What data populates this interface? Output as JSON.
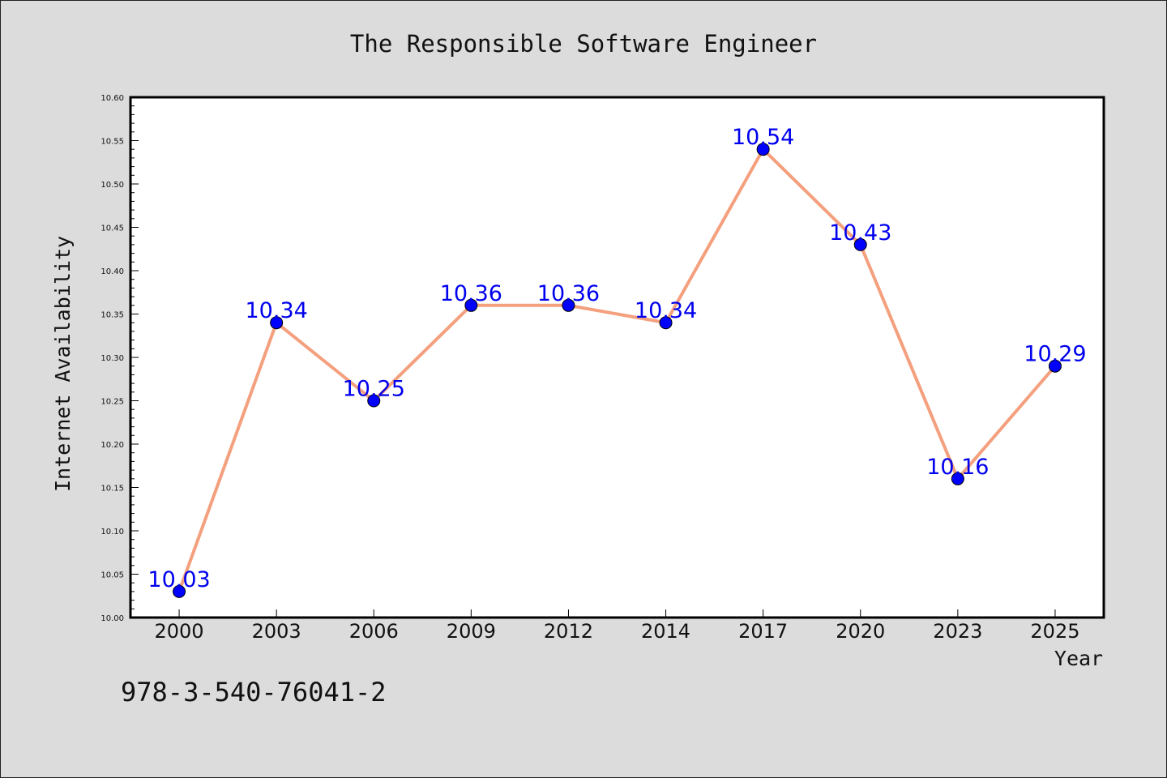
{
  "chart_data": {
    "type": "line",
    "title": "The Responsible Software Engineer",
    "xlabel": "Year",
    "ylabel": "Internet Availability",
    "categories": [
      "2000",
      "2003",
      "2006",
      "2009",
      "2012",
      "2014",
      "2017",
      "2020",
      "2023",
      "2025"
    ],
    "series": [
      {
        "values": [
          10.03,
          10.34,
          10.25,
          10.36,
          10.36,
          10.34,
          10.54,
          10.43,
          10.16,
          10.29
        ],
        "data_labels": [
          "10.03",
          "10.34",
          "10.25",
          "10.36",
          "10.36",
          "10.34",
          "10.54",
          "10.43",
          "10.16",
          "10.29"
        ]
      }
    ],
    "ylim": [
      10.0,
      10.6
    ],
    "yticks": [
      "10.00",
      "10.05",
      "10.10",
      "10.15",
      "10.20",
      "10.25",
      "10.30",
      "10.35",
      "10.40",
      "10.45",
      "10.50",
      "10.55",
      "10.60"
    ],
    "grid": false,
    "legend": "none",
    "colors": {
      "line": "#f4a07e",
      "marker": "#0000ff",
      "data_label": "#0000ee",
      "background": "#dcdcdc",
      "plot_background": "#ffffff"
    }
  },
  "footer_text": "978-3-540-76041-2"
}
